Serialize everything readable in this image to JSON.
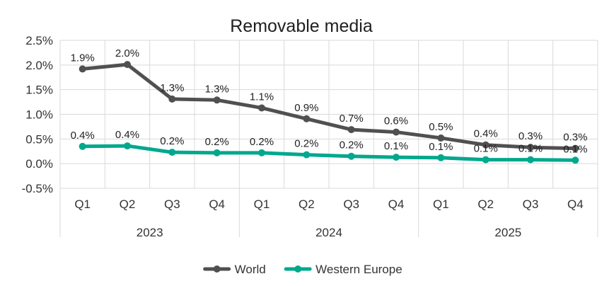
{
  "chart_data": {
    "type": "line",
    "title": "Removable media",
    "categories": [
      "Q1",
      "Q2",
      "Q3",
      "Q4",
      "Q1",
      "Q2",
      "Q3",
      "Q4",
      "Q1",
      "Q2",
      "Q3",
      "Q4"
    ],
    "groups": [
      {
        "label": "2023",
        "span": 4
      },
      {
        "label": "2024",
        "span": 4
      },
      {
        "label": "2025",
        "span": 4
      }
    ],
    "y_ticks": [
      "2.5%",
      "2.0%",
      "1.5%",
      "1.0%",
      "0.5%",
      "0.0%",
      "-0.5%"
    ],
    "ylim": [
      -0.5,
      2.5
    ],
    "grid": true,
    "legend_position": "bottom",
    "series": [
      {
        "name": "World",
        "color": "#505050",
        "values": [
          1.92,
          2.01,
          1.31,
          1.29,
          1.13,
          0.91,
          0.69,
          0.64,
          0.52,
          0.38,
          0.33,
          0.31
        ],
        "labels": [
          "1.9%",
          "2.0%",
          "1.3%",
          "1.3%",
          "1.1%",
          "0.9%",
          "0.7%",
          "0.6%",
          "0.5%",
          "0.4%",
          "0.3%",
          "0.3%"
        ]
      },
      {
        "name": "Western Europe",
        "color": "#00a88e",
        "values": [
          0.35,
          0.36,
          0.23,
          0.22,
          0.22,
          0.18,
          0.15,
          0.13,
          0.12,
          0.08,
          0.08,
          0.07
        ],
        "labels": [
          "0.4%",
          "0.4%",
          "0.2%",
          "0.2%",
          "0.2%",
          "0.2%",
          "0.2%",
          "0.1%",
          "0.1%",
          "0.1%",
          "0.1%",
          "0.1%"
        ]
      }
    ]
  }
}
